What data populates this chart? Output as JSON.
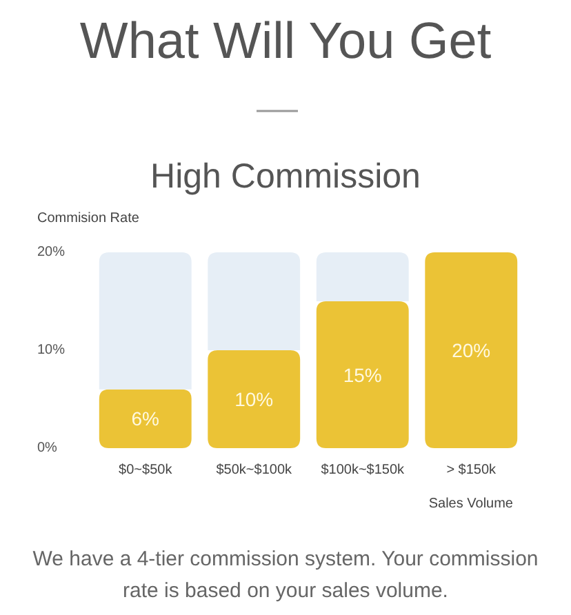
{
  "chart_data": {
    "type": "bar",
    "title": "What Will You Get",
    "subtitle": "High Commission",
    "ylabel": "Commision Rate",
    "xlabel": "Sales Volume",
    "categories": [
      "$0~$50k",
      "$50k~$100k",
      "$100k~$150k",
      "> $150k"
    ],
    "stacked": true,
    "series": [
      {
        "color": "#ebc336",
        "values": [
          6,
          10,
          15,
          20
        ],
        "value_labels": [
          "6%",
          "10%",
          "15%",
          "20%"
        ]
      },
      {
        "color": "#e6eef6",
        "values": [
          14,
          10,
          5,
          0
        ]
      }
    ],
    "ylim": [
      0,
      20
    ],
    "yticks": [
      {
        "value": 0,
        "label": "0%"
      },
      {
        "value": 10,
        "label": "10%"
      },
      {
        "value": 20,
        "label": "20%"
      }
    ],
    "annotations": [
      "We have a 4-tier commission system. Your commission rate is based on your sales volume."
    ]
  }
}
